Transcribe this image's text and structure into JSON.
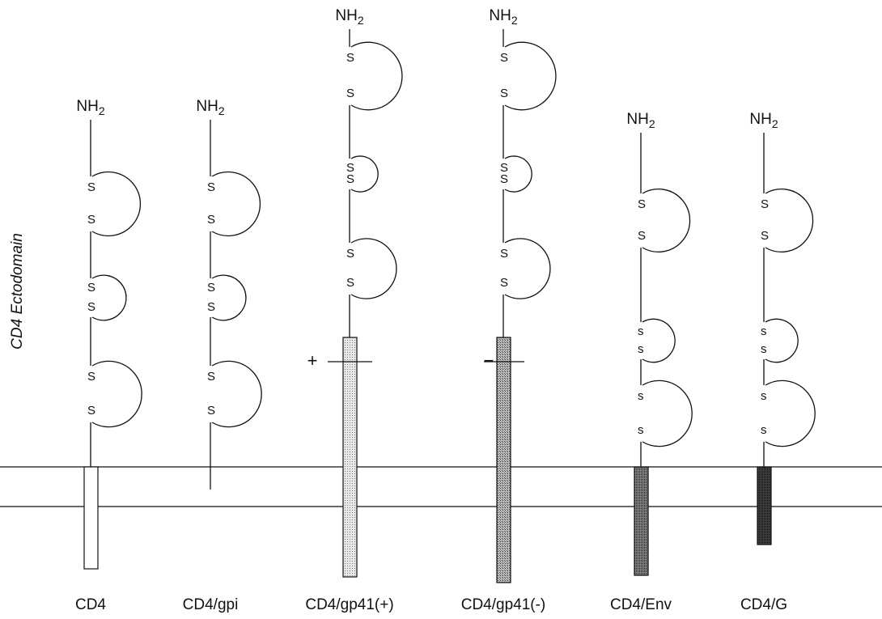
{
  "axis_label": "CD4 Ectodomain",
  "constructs": [
    {
      "name": "CD4",
      "terminus": {
        "base": "NH",
        "sub": "2"
      },
      "domains": [
        {
          "top": "S",
          "bottom": "S"
        },
        {
          "top": "S",
          "bottom": "S"
        },
        {
          "top": "S",
          "bottom": "S"
        }
      ]
    },
    {
      "name": "CD4/gpi",
      "terminus": {
        "base": "NH",
        "sub": "2"
      },
      "domains": [
        {
          "top": "S",
          "bottom": "S"
        },
        {
          "top": "S",
          "bottom": "S"
        },
        {
          "top": "S",
          "bottom": "S"
        }
      ]
    },
    {
      "name": "CD4/gp41(+)",
      "terminus": {
        "base": "NH",
        "sub": "2"
      },
      "sign": "+",
      "domains": [
        {
          "top": "S",
          "bottom": "S"
        },
        {
          "top": "S",
          "bottom": "S"
        },
        {
          "top": "S",
          "bottom": "S"
        }
      ]
    },
    {
      "name": "CD4/gp41(-)",
      "terminus": {
        "base": "NH",
        "sub": "2"
      },
      "sign": "−",
      "domains": [
        {
          "top": "S",
          "bottom": "S"
        },
        {
          "top": "S",
          "bottom": "S"
        },
        {
          "top": "S",
          "bottom": "S"
        }
      ]
    },
    {
      "name": "CD4/Env",
      "terminus": {
        "base": "NH",
        "sub": "2"
      },
      "domains": [
        {
          "top": "S",
          "bottom": "S"
        },
        {
          "top": "s",
          "bottom": "s"
        },
        {
          "top": "s",
          "bottom": "s"
        }
      ]
    },
    {
      "name": "CD4/G",
      "terminus": {
        "base": "NH",
        "sub": "2"
      },
      "domains": [
        {
          "top": "S",
          "bottom": "S"
        },
        {
          "top": "s",
          "bottom": "s"
        },
        {
          "top": "s",
          "bottom": "s"
        }
      ]
    }
  ]
}
